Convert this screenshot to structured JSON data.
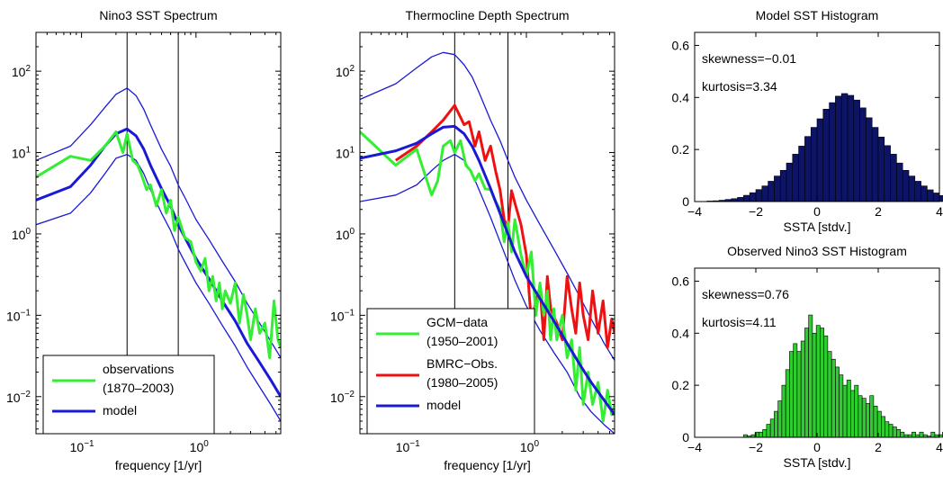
{
  "chart_data": [
    {
      "type": "line",
      "title": "Nino3 SST Spectrum",
      "xlabel": "frequency [1/yr]",
      "ylabel": "",
      "xscale": "log",
      "yscale": "log",
      "xlim": [
        0.04,
        5.5
      ],
      "ylim": [
        0.0035,
        300
      ],
      "xticks": [
        0.1,
        1
      ],
      "xtick_labels": [
        "10^-1",
        "10^0"
      ],
      "yticks": [
        0.01,
        0.1,
        1,
        10,
        100
      ],
      "ytick_labels": [
        "10^-2",
        "10^-1",
        "10^0",
        "10^1",
        "10^2"
      ],
      "vlines": [
        0.25,
        0.7
      ],
      "legend_position": "bottom-left",
      "legend": [
        {
          "label": "observations",
          "label2": "(1870–2003)",
          "color": "#33ee33"
        },
        {
          "label": "model",
          "color": "#1a1ad6"
        }
      ],
      "series": [
        {
          "name": "model",
          "color": "#1a1ad6",
          "width": 3,
          "x": [
            0.04,
            0.08,
            0.12,
            0.16,
            0.2,
            0.25,
            0.3,
            0.35,
            0.4,
            0.5,
            0.6,
            0.7,
            0.8,
            1.0,
            1.3,
            1.7,
            2.2,
            2.8,
            3.5,
            4.5,
            5.5
          ],
          "y": [
            2.6,
            3.8,
            7,
            12,
            17,
            19.5,
            16,
            11,
            7,
            3.6,
            2.2,
            1.3,
            0.9,
            0.5,
            0.28,
            0.15,
            0.085,
            0.045,
            0.028,
            0.016,
            0.01
          ]
        },
        {
          "name": "",
          "color": "#1a1ad6",
          "width": 1.3,
          "x": [
            0.04,
            0.08,
            0.12,
            0.16,
            0.2,
            0.25,
            0.3,
            0.35,
            0.4,
            0.5,
            0.6,
            0.7,
            0.8,
            1.0,
            1.3,
            1.7,
            2.2,
            2.8,
            3.5,
            4.5,
            5.5
          ],
          "y": [
            8,
            12,
            22,
            36,
            52,
            62,
            50,
            34,
            22,
            11,
            6.8,
            4,
            2.8,
            1.5,
            0.85,
            0.46,
            0.26,
            0.14,
            0.085,
            0.048,
            0.03
          ]
        },
        {
          "name": "",
          "color": "#1a1ad6",
          "width": 1.3,
          "x": [
            0.04,
            0.08,
            0.12,
            0.16,
            0.2,
            0.25,
            0.3,
            0.35,
            0.4,
            0.5,
            0.6,
            0.7,
            0.8,
            1.0,
            1.3,
            1.7,
            2.2,
            2.8,
            3.5,
            4.5,
            5.5
          ],
          "y": [
            1.3,
            1.8,
            3.2,
            5.5,
            8.5,
            9.5,
            8,
            5.5,
            3.5,
            1.8,
            1.1,
            0.65,
            0.45,
            0.25,
            0.14,
            0.075,
            0.042,
            0.023,
            0.014,
            0.008,
            0.005
          ]
        },
        {
          "name": "observations",
          "color": "#33ee33",
          "width": 3,
          "x": [
            0.04,
            0.08,
            0.12,
            0.16,
            0.2,
            0.23,
            0.25,
            0.28,
            0.31,
            0.34,
            0.37,
            0.4,
            0.45,
            0.5,
            0.55,
            0.6,
            0.65,
            0.7,
            0.8,
            0.9,
            1.0,
            1.1,
            1.2,
            1.3,
            1.4,
            1.5,
            1.6,
            1.7,
            1.8,
            2.0,
            2.2,
            2.4,
            2.6,
            2.8,
            3.0,
            3.3,
            3.6,
            4.0,
            4.4,
            4.8,
            5.2,
            5.5
          ],
          "y": [
            5,
            9,
            8,
            12,
            18,
            10,
            17,
            8,
            7,
            5,
            3.5,
            4,
            2.2,
            3.5,
            1.8,
            2.6,
            1.1,
            1.6,
            0.9,
            0.8,
            0.45,
            0.35,
            0.5,
            0.2,
            0.3,
            0.15,
            0.25,
            0.12,
            0.2,
            0.14,
            0.25,
            0.08,
            0.18,
            0.1,
            0.05,
            0.12,
            0.06,
            0.08,
            0.03,
            0.15,
            0.05,
            0.04
          ]
        }
      ]
    },
    {
      "type": "line",
      "title": "Thermocline Depth Spectrum",
      "xlabel": "frequency [1/yr]",
      "ylabel": "",
      "xscale": "log",
      "yscale": "log",
      "xlim": [
        0.04,
        5.5
      ],
      "ylim": [
        0.0035,
        300
      ],
      "xticks": [
        0.1,
        1
      ],
      "xtick_labels": [
        "10^-1",
        "10^0"
      ],
      "yticks": [
        0.01,
        0.1,
        1,
        10,
        100
      ],
      "ytick_labels": [
        "10^-2",
        "10^-1",
        "10^0",
        "10^1",
        "10^2"
      ],
      "vlines": [
        0.25,
        0.7
      ],
      "legend_position": "bottom-left",
      "legend": [
        {
          "label": "GCM−data",
          "label2": "(1950–2001)",
          "color": "#33ee33"
        },
        {
          "label": "BMRC−Obs.",
          "label2": "(1980–2005)",
          "color": "#ee1111"
        },
        {
          "label": "model",
          "color": "#1a1ad6"
        }
      ],
      "series": [
        {
          "name": "",
          "color": "#1a1ad6",
          "width": 1.3,
          "x": [
            0.04,
            0.08,
            0.12,
            0.16,
            0.2,
            0.25,
            0.3,
            0.35,
            0.4,
            0.5,
            0.6,
            0.7,
            0.8,
            1.0,
            1.3,
            1.7,
            2.2,
            2.8,
            3.5,
            4.5,
            5.5
          ],
          "y": [
            45,
            70,
            110,
            150,
            170,
            160,
            120,
            85,
            55,
            25,
            14,
            8,
            5,
            2.6,
            1.3,
            0.65,
            0.33,
            0.17,
            0.09,
            0.045,
            0.028
          ]
        },
        {
          "name": "",
          "color": "#1a1ad6",
          "width": 1.3,
          "x": [
            0.04,
            0.08,
            0.12,
            0.16,
            0.2,
            0.25,
            0.3,
            0.35,
            0.4,
            0.5,
            0.6,
            0.7,
            0.8,
            1.0,
            1.3,
            1.7,
            2.2,
            2.8,
            3.5,
            4.5,
            5.5
          ],
          "y": [
            2.5,
            3,
            4,
            6,
            8,
            9.5,
            8,
            5.5,
            3.5,
            1.6,
            0.8,
            0.45,
            0.27,
            0.13,
            0.065,
            0.035,
            0.02,
            0.01,
            0.0065,
            0.0045,
            0.0035
          ]
        },
        {
          "name": "BMRC−Obs.",
          "color": "#ee1111",
          "width": 3,
          "x": [
            0.08,
            0.12,
            0.16,
            0.2,
            0.25,
            0.3,
            0.33,
            0.37,
            0.4,
            0.45,
            0.5,
            0.55,
            0.6,
            0.65,
            0.7,
            0.75,
            0.8,
            0.9,
            1.0,
            1.1,
            1.2,
            1.3,
            1.4,
            1.5,
            1.6,
            1.8,
            2.0,
            2.2,
            2.4,
            2.6,
            2.8,
            3.0,
            3.3,
            3.6,
            4.0,
            4.4,
            4.8,
            5.2,
            5.5
          ],
          "y": [
            8,
            12,
            18,
            25,
            38,
            22,
            24,
            12,
            18,
            8,
            12,
            6,
            3.5,
            1.5,
            1.2,
            3.4,
            2.4,
            1.3,
            0.55,
            0.08,
            0.15,
            0.22,
            0.05,
            0.3,
            0.12,
            0.08,
            0.05,
            0.3,
            0.12,
            0.06,
            0.25,
            0.1,
            0.05,
            0.2,
            0.06,
            0.15,
            0.04,
            0.09,
            0.06
          ]
        },
        {
          "name": "GCM−data",
          "color": "#33ee33",
          "width": 3,
          "x": [
            0.04,
            0.08,
            0.12,
            0.16,
            0.18,
            0.2,
            0.23,
            0.25,
            0.28,
            0.31,
            0.34,
            0.37,
            0.4,
            0.45,
            0.5,
            0.55,
            0.6,
            0.65,
            0.7,
            0.75,
            0.8,
            0.9,
            1.0,
            1.1,
            1.2,
            1.3,
            1.4,
            1.5,
            1.6,
            1.7,
            1.8,
            2.0,
            2.2,
            2.4,
            2.6,
            2.8,
            3.0,
            3.3,
            3.6,
            4.0,
            4.4,
            4.8,
            5.2,
            5.5
          ],
          "y": [
            18,
            7,
            11,
            3,
            4.5,
            12,
            14,
            10,
            14,
            7,
            6,
            4.5,
            5.5,
            3.6,
            3.5,
            2.5,
            2,
            0.8,
            1.4,
            0.6,
            1.5,
            0.55,
            0.3,
            0.6,
            0.1,
            0.25,
            0.1,
            0.2,
            0.05,
            0.12,
            0.05,
            0.1,
            0.03,
            0.05,
            0.012,
            0.04,
            0.008,
            0.02,
            0.008,
            0.015,
            0.005,
            0.012,
            0.006,
            0.008
          ]
        },
        {
          "name": "model",
          "color": "#1a1ad6",
          "width": 3,
          "x": [
            0.04,
            0.08,
            0.12,
            0.16,
            0.2,
            0.25,
            0.3,
            0.35,
            0.4,
            0.5,
            0.6,
            0.7,
            0.8,
            1.0,
            1.3,
            1.7,
            2.2,
            2.8,
            3.5,
            4.5,
            5.5
          ],
          "y": [
            8.5,
            10.5,
            13,
            17,
            20.5,
            21,
            17,
            12,
            8,
            3.6,
            1.8,
            1,
            0.6,
            0.3,
            0.16,
            0.085,
            0.045,
            0.025,
            0.015,
            0.009,
            0.006
          ]
        }
      ]
    },
    {
      "type": "bar",
      "title": "Model SST Histogram",
      "xlabel": "SSTA [stdv.]",
      "ylabel": "",
      "xlim": [
        -4,
        4
      ],
      "ylim": [
        0,
        0.65
      ],
      "xticks": [
        -4,
        -2,
        0,
        2,
        4
      ],
      "xtick_labels": [
        "−4",
        "−2",
        "0",
        "2",
        "4"
      ],
      "yticks": [
        0,
        0.2,
        0.4,
        0.6
      ],
      "ytick_labels": [
        "0",
        "0.2",
        "0.4",
        "0.6"
      ],
      "bar_color": "#0d1466",
      "annotations": [
        "skewness=−0.01",
        "kurtosis=3.34"
      ],
      "bin_start": -3.6,
      "bin_width": 0.2,
      "values": [
        0.002,
        0.003,
        0.005,
        0.008,
        0.011,
        0.016,
        0.024,
        0.034,
        0.046,
        0.06,
        0.078,
        0.098,
        0.12,
        0.148,
        0.182,
        0.213,
        0.25,
        0.285,
        0.318,
        0.355,
        0.38,
        0.405,
        0.415,
        0.408,
        0.39,
        0.36,
        0.322,
        0.285,
        0.248,
        0.215,
        0.182,
        0.148,
        0.12,
        0.098,
        0.078,
        0.06,
        0.045,
        0.033,
        0.023
      ]
    },
    {
      "type": "bar",
      "title": "Observed Nino3 SST Histogram",
      "xlabel": "SSTA [stdv.]",
      "ylabel": "",
      "xlim": [
        -4,
        4
      ],
      "ylim": [
        0,
        0.65
      ],
      "xticks": [
        -4,
        -2,
        0,
        2,
        4
      ],
      "xtick_labels": [
        "−4",
        "−2",
        "0",
        "2",
        "4"
      ],
      "yticks": [
        0,
        0.2,
        0.4,
        0.6
      ],
      "ytick_labels": [
        "0",
        "0.2",
        "0.4",
        "0.6"
      ],
      "bar_color": "#2ecc2e",
      "annotations": [
        "skewness=0.76",
        "kurtosis=4.11"
      ],
      "bin_start": -2.4,
      "bin_width": 0.125,
      "values": [
        0.01,
        0.005,
        0.01,
        0.02,
        0.02,
        0.03,
        0.05,
        0.07,
        0.1,
        0.14,
        0.2,
        0.26,
        0.33,
        0.36,
        0.33,
        0.37,
        0.42,
        0.47,
        0.4,
        0.43,
        0.42,
        0.39,
        0.33,
        0.3,
        0.27,
        0.24,
        0.2,
        0.22,
        0.18,
        0.2,
        0.16,
        0.15,
        0.13,
        0.16,
        0.12,
        0.1,
        0.08,
        0.06,
        0.05,
        0.04,
        0.03,
        0.02,
        0.01,
        0.01,
        0.02,
        0.01,
        0.02,
        0.01,
        0.005,
        0.02,
        0.01,
        0.01,
        0.02
      ]
    }
  ]
}
